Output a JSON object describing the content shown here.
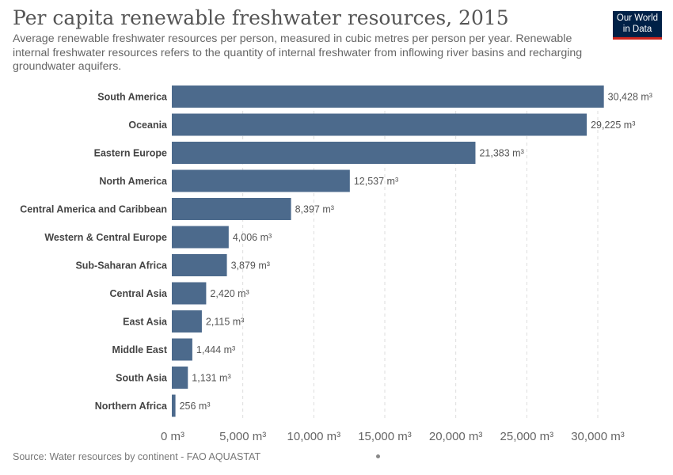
{
  "header": {
    "title": "Per capita renewable freshwater resources, 2015",
    "subtitle": "Average renewable freshwater resources per person, measured in cubic metres per person per year. Renewable internal freshwater resources refers to the quantity of internal freshwater from inflowing river basins and recharging groundwater aquifers.",
    "logo_line1": "Our World",
    "logo_line2": "in Data"
  },
  "footer": {
    "source": "Source: Water resources by continent - FAO AQUASTAT"
  },
  "colors": {
    "bar": "#4c6a8c",
    "grid": "#dddddd",
    "logo_bg": "#002147",
    "logo_accent": "#ce261e"
  },
  "chart_data": {
    "type": "bar",
    "orientation": "horizontal",
    "categories": [
      "South America",
      "Oceania",
      "Eastern Europe",
      "North America",
      "Central America and Caribbean",
      "Western & Central Europe",
      "Sub-Saharan Africa",
      "Central Asia",
      "East Asia",
      "Middle East",
      "South Asia",
      "Northern Africa"
    ],
    "values": [
      30428,
      29225,
      21383,
      12537,
      8397,
      4006,
      3879,
      2420,
      2115,
      1444,
      1131,
      256
    ],
    "value_labels": [
      "30,428 m³",
      "29,225 m³",
      "21,383 m³",
      "12,537 m³",
      "8,397 m³",
      "4,006 m³",
      "3,879 m³",
      "2,420 m³",
      "2,115 m³",
      "1,444 m³",
      "1,131 m³",
      "256 m³"
    ],
    "xlim": [
      0,
      30000
    ],
    "xticks": [
      0,
      5000,
      10000,
      15000,
      20000,
      25000,
      30000
    ],
    "xtick_labels": [
      "0 m³",
      "5,000 m³",
      "10,000 m³",
      "15,000 m³",
      "20,000 m³",
      "25,000 m³",
      "30,000 m³"
    ],
    "grid": true,
    "unit": "m³"
  }
}
